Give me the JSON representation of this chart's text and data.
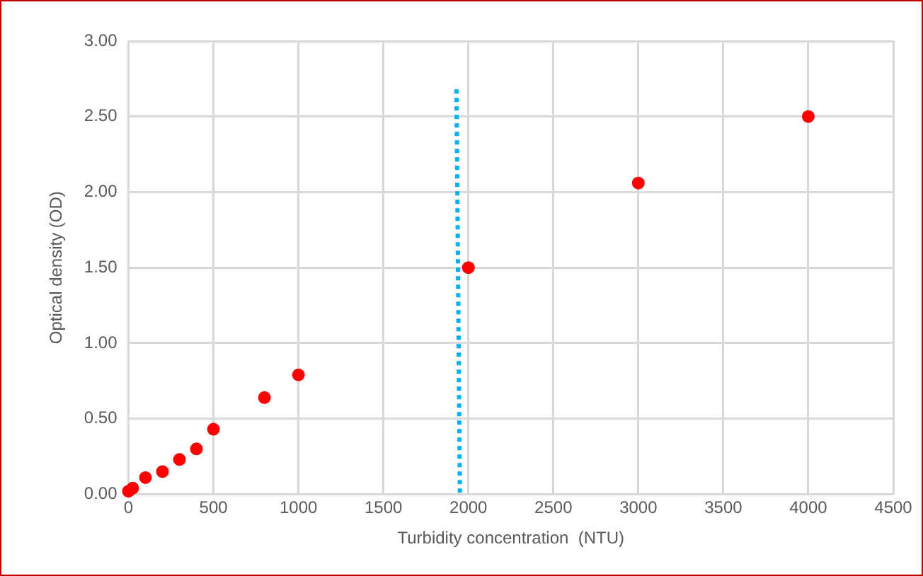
{
  "chart_data": {
    "type": "scatter",
    "xlabel": "Turbidity concentration  (NTU)",
    "ylabel": "Optical density (OD)",
    "xlim": [
      0,
      4500
    ],
    "xticks": [
      0,
      500,
      1000,
      1500,
      2000,
      2500,
      3000,
      3500,
      4000,
      4500
    ],
    "ylim": [
      0,
      3
    ],
    "yticks": [
      {
        "value": 0,
        "label": "0.00"
      },
      {
        "value": 0.5,
        "label": "0.50"
      },
      {
        "value": 1,
        "label": "1.00"
      },
      {
        "value": 1.5,
        "label": "1.50"
      },
      {
        "value": 2,
        "label": "2.00"
      },
      {
        "value": 2.5,
        "label": "2.50"
      },
      {
        "value": 3,
        "label": "3.00"
      }
    ],
    "grid": true,
    "legend": false,
    "series": [
      {
        "type": "scatter",
        "color": "#ff0000",
        "marker": "circle",
        "x": [
          0,
          25,
          100,
          200,
          300,
          400,
          500,
          800,
          1000,
          2000,
          3000,
          4000
        ],
        "values": [
          0.02,
          0.04,
          0.11,
          0.15,
          0.23,
          0.3,
          0.43,
          0.64,
          0.79,
          1.5,
          2.06,
          2.5
        ]
      },
      {
        "type": "line",
        "color": "#00b0f0",
        "marker": "none",
        "line_style": "dotted",
        "x": [
          1930,
          1950
        ],
        "values": [
          2.68,
          0
        ]
      }
    ]
  }
}
